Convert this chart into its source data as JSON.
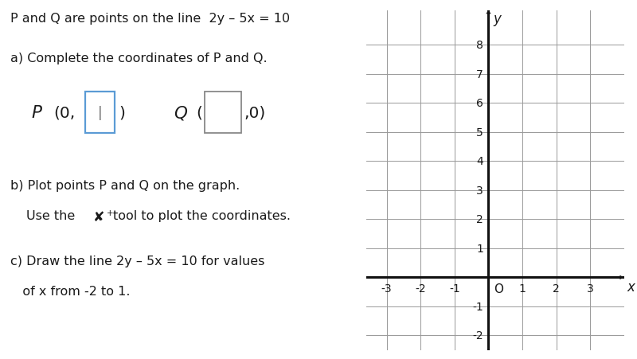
{
  "title_line": "P and Q are points on the line  2y – 5x = 10",
  "part_a": "a) Complete the coordinates of P and Q.",
  "part_b_line1": "b) Plot points P and Q on the graph.",
  "part_b_line2": "Use the ✘",
  "part_b_line2b": "tool to plot the coordinates.",
  "part_c_line1": "c) Draw the line 2y – 5x = 10 for values",
  "part_c_line2": "   of x from -2 to 1.",
  "graph_xlim": [
    -3.6,
    4.0
  ],
  "graph_ylim": [
    -2.5,
    9.2
  ],
  "x_ticks": [
    -3,
    -2,
    -1,
    0,
    1,
    2,
    3
  ],
  "y_ticks": [
    -2,
    -1,
    0,
    1,
    2,
    3,
    4,
    5,
    6,
    7,
    8
  ],
  "bg_color": "#ffffff",
  "grid_color": "#999999",
  "axis_color": "#111111",
  "text_color": "#1a1a1a",
  "box_color": "#5b9bd5",
  "box2_color": "#888888"
}
